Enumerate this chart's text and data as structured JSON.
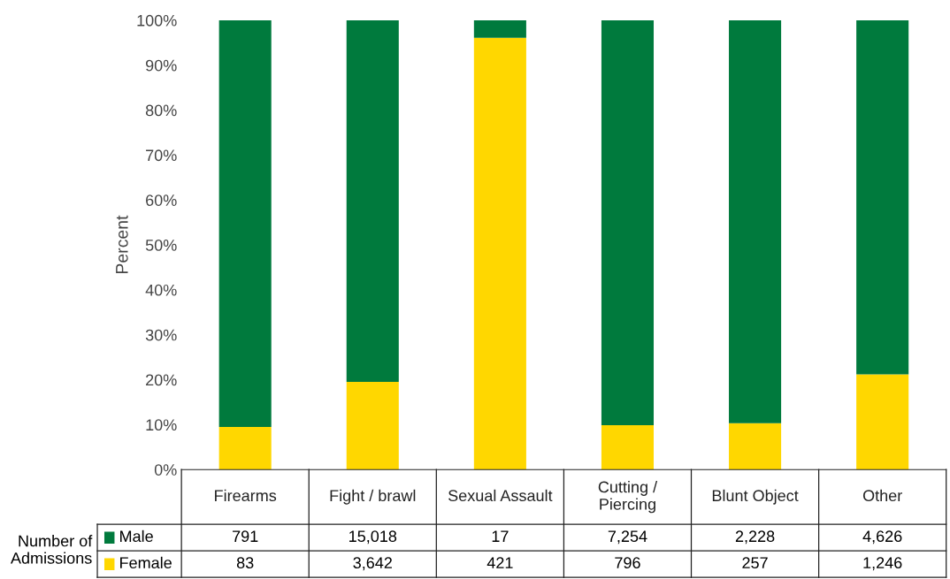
{
  "chart_data": {
    "type": "bar",
    "stacked": true,
    "ylabel": "Percent",
    "legend": "bottom left",
    "categories": [
      "Firearms",
      "Fight / brawl",
      "Sexual Assault",
      "Cutting /\nPiercing",
      "Blunt Object",
      "Other"
    ],
    "series": [
      {
        "name": "Female",
        "color": "#ffd700",
        "values": [
          9.5,
          19.5,
          96.1,
          9.9,
          10.3,
          21.2
        ]
      },
      {
        "name": "Male",
        "color": "#007a3d",
        "values": [
          90.5,
          80.5,
          3.9,
          90.1,
          89.7,
          78.8
        ]
      }
    ],
    "ylim": [
      0,
      100
    ],
    "yticks": [
      {
        "value": 0,
        "label": "0%"
      },
      {
        "value": 10,
        "label": "10%"
      },
      {
        "value": 20,
        "label": "20%"
      },
      {
        "value": 30,
        "label": "30%"
      },
      {
        "value": 40,
        "label": "40%"
      },
      {
        "value": 50,
        "label": "50%"
      },
      {
        "value": 60,
        "label": "60%"
      },
      {
        "value": 70,
        "label": "70%"
      },
      {
        "value": 80,
        "label": "80%"
      },
      {
        "value": 90,
        "label": "90%"
      },
      {
        "value": 100,
        "label": "100%"
      }
    ],
    "annotations": [
      "Number of\nAdmissions",
      "791",
      "15,018",
      "17",
      "7,254",
      "2,228",
      "4,626",
      "83",
      "3,642",
      "421",
      "796",
      "257",
      "1,246"
    ]
  }
}
